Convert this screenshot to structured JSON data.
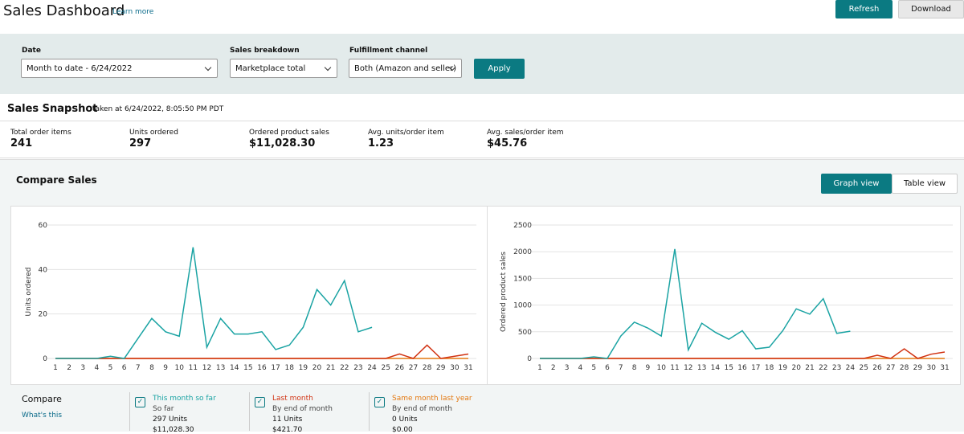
{
  "header": {
    "title": "Sales Dashboard",
    "learn_more": "Learn more",
    "buttons": [
      "Refresh",
      "Download"
    ]
  },
  "filters": {
    "items": [
      {
        "label": "Date",
        "value": "Month to date - 6/24/2022"
      },
      {
        "label": "Sales breakdown",
        "value": "Marketplace total"
      },
      {
        "label": "Fulfillment channel",
        "value": "Both (Amazon and seller)"
      }
    ],
    "apply": "Apply"
  },
  "snapshot": {
    "title": "Sales Snapshot",
    "taken": "taken at 6/24/2022, 8:05:50 PM PDT",
    "metrics": [
      {
        "label": "Total order items",
        "value": "241"
      },
      {
        "label": "Units ordered",
        "value": "297"
      },
      {
        "label": "Ordered product sales",
        "value": "$11,028.30"
      },
      {
        "label": "Avg. units/order item",
        "value": "1.23"
      },
      {
        "label": "Avg. sales/order item",
        "value": "$45.76"
      }
    ]
  },
  "compare": {
    "title": "Compare Sales",
    "views": [
      "Graph view",
      "Table view"
    ],
    "heading": "Compare",
    "whats_this": "What's this",
    "items": [
      {
        "sub": "So far",
        "units": "297 Units",
        "sales": "$11,028.30"
      },
      {
        "sub": "By end of month",
        "units": "11 Units",
        "sales": "$421.70"
      },
      {
        "sub": "By end of month",
        "units": "0 Units",
        "sales": "$0.00"
      }
    ]
  },
  "chart_data": [
    {
      "type": "line",
      "y_label": "Units ordered",
      "x": [
        1,
        2,
        3,
        4,
        5,
        6,
        7,
        8,
        9,
        10,
        11,
        12,
        13,
        14,
        15,
        16,
        17,
        18,
        19,
        20,
        21,
        22,
        23,
        24,
        25,
        26,
        27,
        28,
        29,
        30,
        31
      ],
      "xlim": [
        1,
        31
      ],
      "ylim": [
        0,
        60
      ],
      "yticks": [
        0,
        20,
        40,
        60
      ],
      "grid": true,
      "series": [
        {
          "name": "Same month last year",
          "color": "#e47911",
          "values": [
            0,
            0,
            0,
            0,
            0,
            0,
            0,
            0,
            0,
            0,
            0,
            0,
            0,
            0,
            0,
            0,
            0,
            0,
            0,
            0,
            0,
            0,
            0,
            0,
            0,
            0,
            0,
            0,
            0,
            0,
            0
          ]
        },
        {
          "name": "Last month",
          "color": "#d13212",
          "values": [
            0,
            0,
            0,
            0,
            0,
            0,
            0,
            0,
            0,
            0,
            0,
            0,
            0,
            0,
            0,
            0,
            0,
            0,
            0,
            0,
            0,
            0,
            0,
            0,
            0,
            2,
            0,
            6,
            0,
            1,
            2
          ]
        },
        {
          "name": "This month so far",
          "color": "#1aa3a3",
          "values": [
            0,
            0,
            0,
            0,
            1,
            0,
            9,
            18,
            12,
            10,
            50,
            5,
            18,
            11,
            11,
            12,
            4,
            6,
            14,
            31,
            24,
            35,
            12,
            14,
            null,
            null,
            null,
            null,
            null,
            null,
            null
          ]
        }
      ]
    },
    {
      "type": "line",
      "y_label": "Ordered product sales",
      "x": [
        1,
        2,
        3,
        4,
        5,
        6,
        7,
        8,
        9,
        10,
        11,
        12,
        13,
        14,
        15,
        16,
        17,
        18,
        19,
        20,
        21,
        22,
        23,
        24,
        25,
        26,
        27,
        28,
        29,
        30,
        31
      ],
      "xlim": [
        1,
        31
      ],
      "ylim": [
        0,
        2500
      ],
      "yticks": [
        0,
        500,
        1000,
        1500,
        2000,
        2500
      ],
      "grid": true,
      "series": [
        {
          "name": "Same month last year",
          "color": "#e47911",
          "values": [
            0,
            0,
            0,
            0,
            0,
            0,
            0,
            0,
            0,
            0,
            0,
            0,
            0,
            0,
            0,
            0,
            0,
            0,
            0,
            0,
            0,
            0,
            0,
            0,
            0,
            0,
            0,
            0,
            0,
            0,
            0
          ]
        },
        {
          "name": "Last month",
          "color": "#d13212",
          "values": [
            0,
            0,
            0,
            0,
            0,
            0,
            0,
            0,
            0,
            0,
            0,
            0,
            0,
            0,
            0,
            0,
            0,
            0,
            0,
            0,
            0,
            0,
            0,
            0,
            0,
            60,
            0,
            180,
            0,
            80,
            120
          ]
        },
        {
          "name": "This month so far",
          "color": "#1aa3a3",
          "values": [
            0,
            0,
            0,
            0,
            30,
            0,
            420,
            680,
            570,
            420,
            2050,
            160,
            660,
            490,
            360,
            520,
            180,
            210,
            520,
            930,
            830,
            1120,
            470,
            510,
            null,
            null,
            null,
            null,
            null,
            null,
            null
          ]
        }
      ]
    }
  ]
}
